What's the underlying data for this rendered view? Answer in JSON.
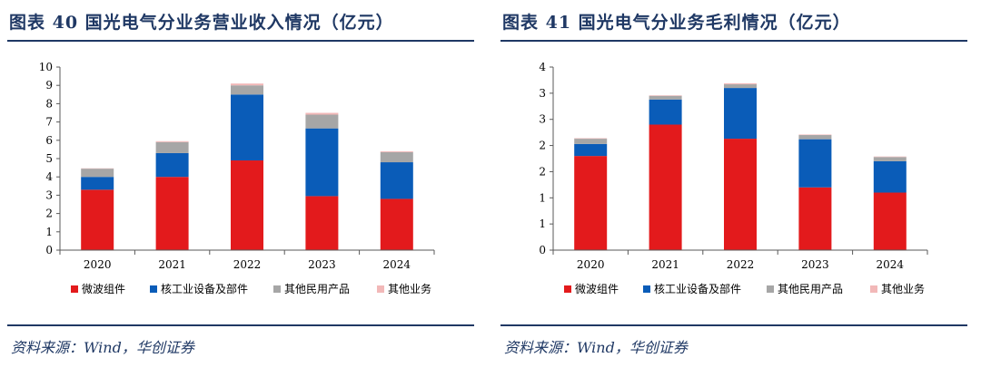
{
  "chart_data": [
    {
      "type": "bar",
      "stacked": true,
      "title": "图表 40 国光电气分业务营业收入情况（亿元）",
      "categories": [
        "2020",
        "2021",
        "2022",
        "2023",
        "2024"
      ],
      "ylim": [
        0,
        10
      ],
      "yticks": [
        "0",
        "1",
        "2",
        "3",
        "4",
        "5",
        "6",
        "7",
        "8",
        "9",
        "10"
      ],
      "legend_position": "bottom",
      "series": [
        {
          "name": "微波组件",
          "color": "#e31a1c",
          "values": [
            3.3,
            4.0,
            4.9,
            2.95,
            2.8
          ]
        },
        {
          "name": "核工业设备及部件",
          "color": "#0a5cb8",
          "values": [
            0.7,
            1.3,
            3.6,
            3.7,
            2.0
          ]
        },
        {
          "name": "其他民用产品",
          "color": "#a6a6a6",
          "values": [
            0.45,
            0.6,
            0.5,
            0.75,
            0.55
          ]
        },
        {
          "name": "其他业务",
          "color": "#f2b8b8",
          "values": [
            0.02,
            0.05,
            0.1,
            0.1,
            0.05
          ]
        }
      ],
      "source": "资料来源：Wind，华创证券"
    },
    {
      "type": "bar",
      "stacked": true,
      "title": "图表 41 国光电气分业务毛利情况（亿元）",
      "categories": [
        "2020",
        "2021",
        "2022",
        "2023",
        "2024"
      ],
      "ylim": [
        0,
        3.5
      ],
      "yticks": [
        "0",
        "1",
        "1",
        "2",
        "2",
        "3",
        "3",
        "4"
      ],
      "legend_position": "bottom",
      "series": [
        {
          "name": "微波组件",
          "color": "#e31a1c",
          "values": [
            1.8,
            2.4,
            2.13,
            1.2,
            1.1
          ]
        },
        {
          "name": "核工业设备及部件",
          "color": "#0a5cb8",
          "values": [
            0.23,
            0.48,
            0.97,
            0.92,
            0.6
          ]
        },
        {
          "name": "其他民用产品",
          "color": "#a6a6a6",
          "values": [
            0.1,
            0.07,
            0.07,
            0.08,
            0.08
          ]
        },
        {
          "name": "其他业务",
          "color": "#f2b8b8",
          "values": [
            0.01,
            0.01,
            0.02,
            0.01,
            0.01
          ]
        }
      ],
      "source": "资料来源：Wind，华创证券"
    }
  ]
}
